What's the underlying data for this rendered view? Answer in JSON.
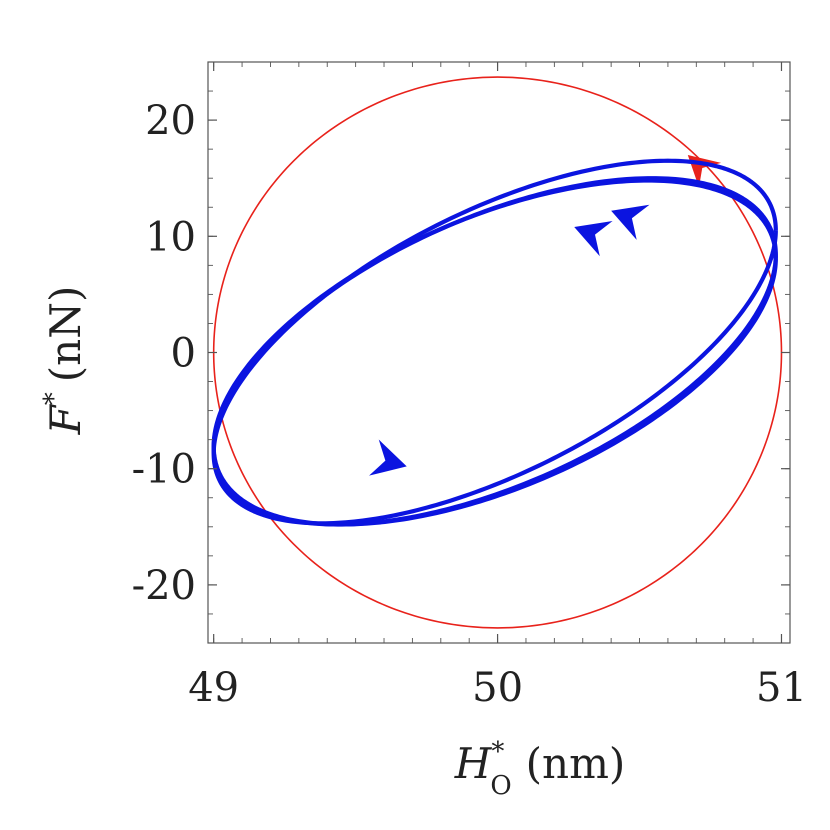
{
  "chart_data": {
    "type": "line",
    "xlabel": {
      "symbol": "H",
      "superscript": "*",
      "subscript": "O",
      "unit": "(nm)"
    },
    "ylabel": {
      "symbol": "F",
      "superscript": "*",
      "unit": "(nN)"
    },
    "xlim": [
      48.98,
      51.03
    ],
    "ylim": [
      -25,
      25
    ],
    "x_ticks": [
      49,
      50,
      51
    ],
    "x_tick_labels": [
      "49",
      "50",
      "51"
    ],
    "y_ticks": [
      -20,
      -10,
      0,
      10,
      20
    ],
    "y_tick_labels": [
      "-20",
      "-10",
      "0",
      "10",
      "20"
    ],
    "grid": false,
    "colors": {
      "circle": "#e8221b",
      "orbit": "#0b14e0",
      "axes": "#555555"
    },
    "series": [
      {
        "style": "circle",
        "color": "#e8221b",
        "center": [
          50.0,
          0
        ],
        "x_radius": 1.0,
        "y_radius": 23.7,
        "direction": "counterclockwise",
        "arrow_at": [
          50.67,
          17.0
        ]
      },
      {
        "style": "orbit",
        "color": "#0b14e0",
        "loops": [
          {
            "center_x": 49.99,
            "center_y": 0.9,
            "x_amp": 0.99,
            "y_amp": 15.6,
            "phase_deg": 38
          },
          {
            "center_x": 49.99,
            "center_y": 0.0,
            "x_amp": 0.99,
            "y_amp": 14.8,
            "phase_deg": 33
          },
          {
            "center_x": 49.99,
            "center_y": 0.1,
            "x_amp": 0.99,
            "y_amp": 14.9,
            "phase_deg": 34
          }
        ],
        "arrows": [
          {
            "x": 50.4,
            "y": 12.2,
            "dir": "left"
          },
          {
            "x": 50.27,
            "y": 10.8,
            "dir": "left"
          },
          {
            "x": 49.68,
            "y": -9.8,
            "dir": "right"
          }
        ]
      }
    ]
  }
}
